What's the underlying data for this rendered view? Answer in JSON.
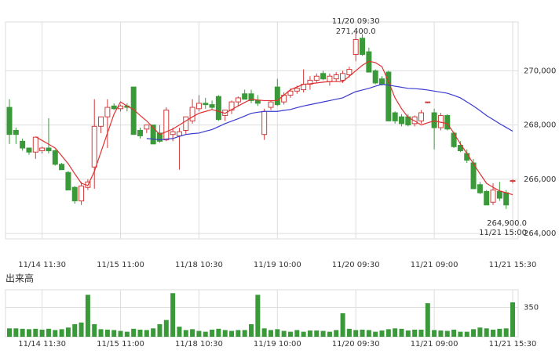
{
  "chart_data": [
    {
      "type": "candlestick",
      "categories": [
        null,
        null,
        null,
        null,
        null,
        "11/14 11:30",
        null,
        null,
        null,
        null,
        null,
        null,
        null,
        null,
        null,
        null,
        null,
        "11/15 11:00",
        null,
        null,
        null,
        null,
        null,
        null,
        null,
        null,
        null,
        null,
        null,
        "11/18 10:30",
        null,
        null,
        null,
        null,
        null,
        null,
        null,
        null,
        null,
        null,
        null,
        "11/19 10:00",
        null,
        null,
        null,
        null,
        null,
        null,
        null,
        null,
        null,
        null,
        null,
        "11/20 09:30",
        null,
        null,
        null,
        null,
        null,
        null,
        null,
        null,
        null,
        null,
        null,
        "11/21 09:00",
        null,
        null,
        null,
        null,
        null,
        null,
        null,
        null,
        null,
        null,
        null,
        "11/21 15:30"
      ],
      "open": [
        268650,
        267800,
        267400,
        267150,
        267000,
        267050,
        267150,
        267050,
        266550,
        266250,
        265700,
        265200,
        265700,
        266450,
        267950,
        268300,
        268700,
        268600,
        268700,
        269400,
        267800,
        267850,
        268000,
        267700,
        267450,
        267650,
        267600,
        267800,
        268150,
        268600,
        268800,
        268750,
        269050,
        268350,
        268550,
        268850,
        269150,
        269150,
        268900,
        267650,
        268650,
        269400,
        268850,
        269100,
        269250,
        269300,
        269500,
        269650,
        269900,
        269600,
        269700,
        269650,
        269850,
        270600,
        271200,
        270700,
        270000,
        269700,
        269950,
        268450,
        268300,
        268300,
        268050,
        268150,
        268850,
        268450,
        267900,
        268350,
        267700,
        267250,
        266950,
        266600,
        265800,
        265550,
        265150,
        265550,
        265500,
        265950
      ],
      "high": [
        268950,
        267900,
        267500,
        267150,
        267550,
        267200,
        268250,
        267100,
        266600,
        266300,
        265750,
        265900,
        266000,
        268950,
        268300,
        268950,
        268800,
        268750,
        268800,
        269400,
        267900,
        268000,
        268000,
        268000,
        268650,
        267900,
        267900,
        268300,
        268950,
        269100,
        269000,
        268900,
        269100,
        268550,
        268900,
        269050,
        269300,
        269300,
        269100,
        268600,
        268900,
        269700,
        269200,
        269350,
        269450,
        270050,
        269800,
        269900,
        270000,
        269900,
        269950,
        270000,
        270150,
        271400,
        271350,
        270850,
        270050,
        269800,
        270000,
        268500,
        268400,
        268400,
        268350,
        268550,
        268850,
        268600,
        268450,
        268400,
        267750,
        267400,
        267100,
        266750,
        265900,
        265600,
        265850,
        265900,
        265600,
        266000
      ],
      "low": [
        267300,
        267300,
        267050,
        266900,
        266750,
        266950,
        266950,
        266500,
        266350,
        265600,
        265100,
        265050,
        265600,
        265650,
        267700,
        267150,
        268550,
        268500,
        268500,
        267650,
        267500,
        267700,
        267300,
        267350,
        267400,
        267400,
        266350,
        267650,
        268050,
        268500,
        268600,
        268550,
        268150,
        268150,
        268400,
        268700,
        268950,
        268800,
        268700,
        267450,
        268550,
        268700,
        268750,
        269000,
        269150,
        269200,
        269300,
        269550,
        269650,
        269450,
        269600,
        269550,
        269750,
        270350,
        270550,
        269950,
        269500,
        269450,
        268150,
        268050,
        267950,
        267950,
        267950,
        268050,
        268800,
        267100,
        267800,
        267800,
        267150,
        267000,
        266600,
        265650,
        265450,
        265050,
        265050,
        265200,
        264900,
        265850
      ],
      "close": [
        267650,
        267650,
        267150,
        267000,
        267550,
        267150,
        267050,
        266550,
        266350,
        265600,
        265200,
        265750,
        265900,
        267950,
        268300,
        268650,
        268600,
        268700,
        268650,
        267650,
        267600,
        268000,
        267300,
        267400,
        268550,
        267750,
        267750,
        268300,
        268650,
        268800,
        268750,
        268650,
        268200,
        268550,
        268850,
        269000,
        268950,
        268900,
        268800,
        268500,
        268850,
        268750,
        269100,
        269250,
        269350,
        269500,
        269650,
        269800,
        269700,
        269800,
        269850,
        269900,
        270050,
        271150,
        270600,
        269950,
        269550,
        269500,
        268150,
        268150,
        268050,
        268000,
        268300,
        268450,
        268850,
        267900,
        268350,
        267850,
        267200,
        267050,
        266700,
        265650,
        265500,
        265050,
        265600,
        265300,
        265050,
        265950
      ],
      "up_color": "#d23c3c",
      "down_color": "#3a9a3a",
      "lines": [
        {
          "color": "#e03030",
          "values": [
            null,
            null,
            null,
            null,
            267570,
            267430,
            267290,
            267150,
            266860,
            266570,
            266200,
            265850,
            265770,
            266290,
            267000,
            267700,
            268400,
            268850,
            268700,
            268570,
            268350,
            268150,
            267900,
            267650,
            267750,
            267850,
            268000,
            268150,
            268300,
            268430,
            268500,
            268570,
            268500,
            268430,
            268570,
            268700,
            268830,
            268950,
            268920,
            268900,
            268900,
            268900,
            269100,
            269300,
            269400,
            269500,
            269520,
            269550,
            269580,
            269600,
            269600,
            269600,
            269800,
            270000,
            270200,
            270350,
            270300,
            270150,
            269600,
            269000,
            268600,
            268280,
            268150,
            268000,
            268080,
            268150,
            268100,
            268050,
            267700,
            267300,
            266950,
            266570,
            266200,
            265850,
            265700,
            265570,
            265500,
            265430
          ]
        },
        {
          "color": "#3a3ad0",
          "values": [
            null,
            null,
            null,
            null,
            null,
            null,
            null,
            null,
            null,
            null,
            null,
            null,
            null,
            null,
            null,
            null,
            null,
            null,
            null,
            null,
            null,
            267500,
            267480,
            267450,
            267480,
            267500,
            267580,
            267650,
            267680,
            267700,
            267770,
            267830,
            267940,
            268050,
            268140,
            268230,
            268330,
            268430,
            268470,
            268500,
            268500,
            268500,
            268540,
            268570,
            268640,
            268700,
            268750,
            268800,
            268850,
            268900,
            268950,
            269000,
            269120,
            269230,
            269290,
            269350,
            269430,
            269500,
            269470,
            269430,
            269390,
            269350,
            269340,
            269320,
            269290,
            269250,
            269210,
            269170,
            269090,
            269000,
            268850,
            268700,
            268530,
            268350,
            268200,
            268050,
            267910,
            267770
          ]
        }
      ],
      "ylim": [
        263800,
        271800
      ],
      "yticks": [
        {
          "value": 264000,
          "label": "264,000"
        },
        {
          "value": 266000,
          "label": "266,000"
        },
        {
          "value": 268000,
          "label": "268,000"
        },
        {
          "value": 270000,
          "label": "270,000"
        }
      ],
      "grid": true,
      "annotations": [
        {
          "lines": [
            "11/20 09:30",
            "271,400.0"
          ],
          "color": "#d23c3c",
          "corner": "top"
        },
        {
          "lines": [
            "264,900.0",
            "11/21 15:00"
          ],
          "color": "#3a9a3a",
          "corner": "bottom-right"
        }
      ]
    },
    {
      "type": "bar",
      "title": "出来高",
      "categories": [
        null,
        null,
        null,
        null,
        null,
        "11/14 11:30",
        null,
        null,
        null,
        null,
        null,
        null,
        null,
        null,
        null,
        null,
        null,
        "11/15 11:00",
        null,
        null,
        null,
        null,
        null,
        null,
        null,
        null,
        null,
        null,
        null,
        "11/18 10:30",
        null,
        null,
        null,
        null,
        null,
        null,
        null,
        null,
        null,
        null,
        null,
        "11/19 10:00",
        null,
        null,
        null,
        null,
        null,
        null,
        null,
        null,
        null,
        null,
        null,
        "11/20 09:30",
        null,
        null,
        null,
        null,
        null,
        null,
        null,
        null,
        null,
        null,
        null,
        "11/21 09:00",
        null,
        null,
        null,
        null,
        null,
        null,
        null,
        null,
        null,
        null,
        null,
        "11/21 15:30"
      ],
      "values": [
        100,
        100,
        95,
        90,
        95,
        85,
        95,
        80,
        90,
        110,
        150,
        170,
        500,
        150,
        90,
        85,
        80,
        70,
        60,
        95,
        85,
        80,
        100,
        150,
        200,
        520,
        120,
        80,
        90,
        70,
        60,
        85,
        95,
        80,
        70,
        80,
        80,
        150,
        500,
        100,
        80,
        90,
        70,
        60,
        80,
        60,
        75,
        75,
        70,
        60,
        80,
        280,
        95,
        80,
        85,
        80,
        60,
        75,
        90,
        100,
        95,
        75,
        85,
        85,
        400,
        80,
        75,
        70,
        85,
        60,
        60,
        90,
        110,
        100,
        85,
        95,
        100,
        410
      ],
      "color": "#3a9a3a",
      "ylim": [
        0,
        560
      ],
      "yticks": [
        350
      ],
      "grid": true
    }
  ]
}
